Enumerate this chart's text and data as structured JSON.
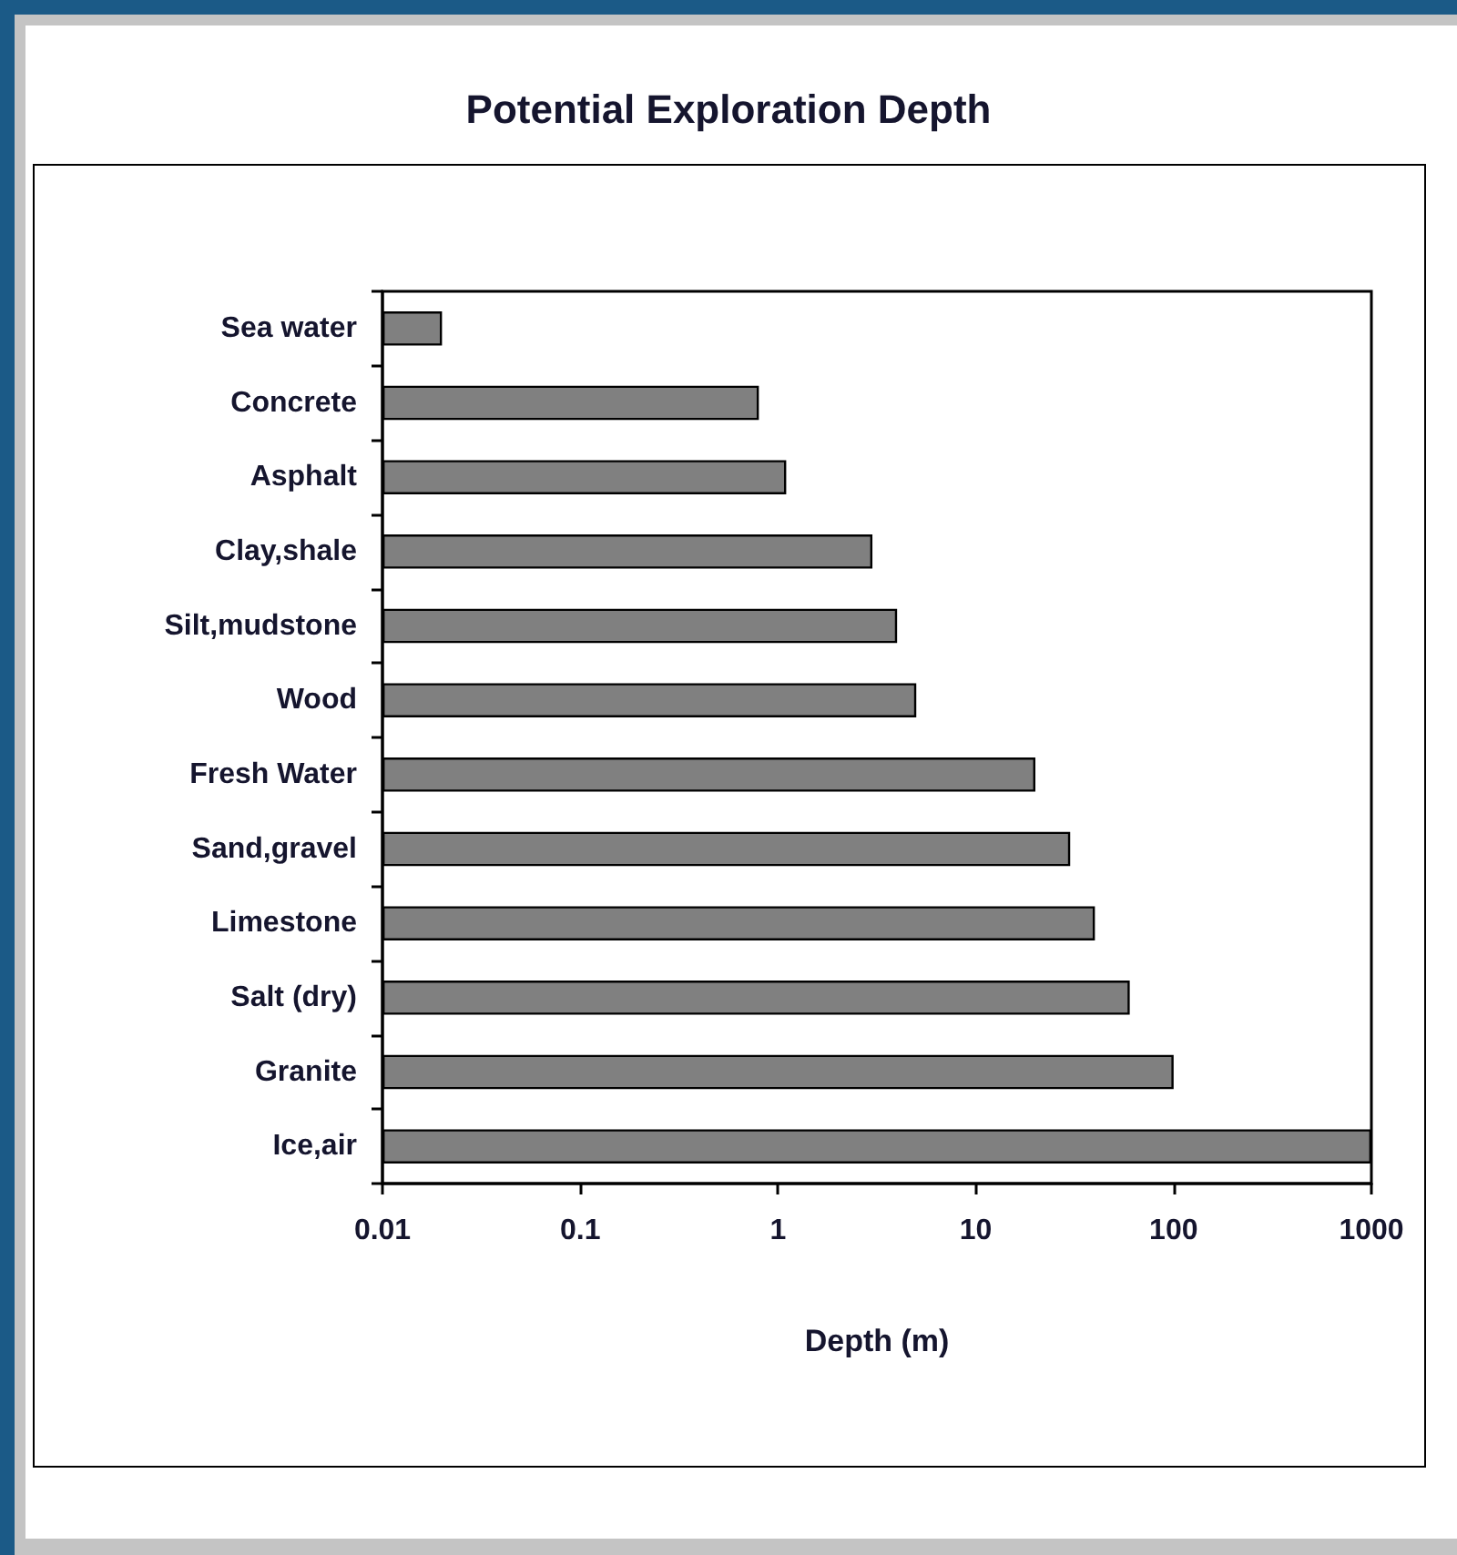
{
  "chart_data": {
    "type": "bar",
    "orientation": "horizontal",
    "title": "Potential Exploration Depth",
    "xlabel": "Depth (m)",
    "categories": [
      "Sea water",
      "Concrete",
      "Asphalt",
      "Clay,shale",
      "Silt,mudstone",
      "Wood",
      "Fresh Water",
      "Sand,gravel",
      "Limestone",
      "Salt (dry)",
      "Granite",
      "Ice,air"
    ],
    "values": [
      0.02,
      0.8,
      1.1,
      3,
      4,
      5,
      20,
      30,
      40,
      60,
      100,
      1000
    ],
    "color": "#808080",
    "xlim": [
      0.01,
      1000
    ],
    "xticks": [
      0.01,
      0.1,
      1,
      10,
      100,
      1000
    ],
    "log": "x",
    "grid": false
  }
}
